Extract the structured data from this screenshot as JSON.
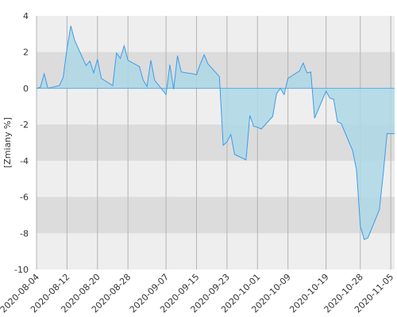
{
  "chart_data": {
    "type": "area",
    "ylabel": "[Zmiany %]",
    "ylim": [
      -10,
      4
    ],
    "yticks": [
      4,
      2,
      0,
      -2,
      -4,
      -6,
      -8,
      -10
    ],
    "xticks": [
      "2020-08-04",
      "2020-08-12",
      "2020-08-20",
      "2020-08-28",
      "2020-09-07",
      "2020-09-15",
      "2020-09-23",
      "2020-10-01",
      "2020-10-09",
      "2020-10-19",
      "2020-10-28",
      "2020-11-05"
    ],
    "grid": true,
    "series": [
      {
        "x": [
          "2020-08-04",
          "2020-08-05",
          "2020-08-06",
          "2020-08-07",
          "2020-08-10",
          "2020-08-11",
          "2020-08-12",
          "2020-08-13",
          "2020-08-14",
          "2020-08-17",
          "2020-08-18",
          "2020-08-19",
          "2020-08-20",
          "2020-08-21",
          "2020-08-24",
          "2020-08-25",
          "2020-08-26",
          "2020-08-27",
          "2020-08-28",
          "2020-08-31",
          "2020-09-01",
          "2020-09-02",
          "2020-09-03",
          "2020-09-04",
          "2020-09-07",
          "2020-09-08",
          "2020-09-09",
          "2020-09-10",
          "2020-09-11",
          "2020-09-14",
          "2020-09-15",
          "2020-09-16",
          "2020-09-17",
          "2020-09-18",
          "2020-09-21",
          "2020-09-22",
          "2020-09-23",
          "2020-09-24",
          "2020-09-25",
          "2020-09-28",
          "2020-09-29",
          "2020-09-30",
          "2020-10-01",
          "2020-10-02",
          "2020-10-05",
          "2020-10-06",
          "2020-10-07",
          "2020-10-08",
          "2020-10-09",
          "2020-10-12",
          "2020-10-13",
          "2020-10-14",
          "2020-10-15",
          "2020-10-16",
          "2020-10-19",
          "2020-10-20",
          "2020-10-21",
          "2020-10-22",
          "2020-10-23",
          "2020-10-26",
          "2020-10-27",
          "2020-10-28",
          "2020-10-29",
          "2020-10-30",
          "2020-11-02",
          "2020-11-03",
          "2020-11-04",
          "2020-11-05",
          "2020-11-06"
        ],
        "y": [
          0.0,
          0.05,
          0.8,
          0.0,
          0.15,
          0.6,
          2.2,
          3.45,
          2.65,
          1.25,
          1.5,
          0.85,
          1.6,
          0.55,
          0.15,
          1.95,
          1.65,
          2.35,
          1.55,
          1.2,
          0.45,
          0.1,
          1.55,
          0.45,
          -0.35,
          1.3,
          -0.05,
          1.8,
          0.9,
          0.8,
          0.75,
          1.35,
          1.85,
          1.35,
          0.65,
          -3.15,
          -2.95,
          -2.55,
          -3.65,
          -3.95,
          -1.5,
          -2.1,
          -2.15,
          -2.25,
          -1.55,
          -0.3,
          0.0,
          -0.35,
          0.55,
          0.95,
          1.4,
          0.85,
          0.9,
          -1.65,
          -0.15,
          -0.55,
          -0.6,
          -1.85,
          -1.95,
          -3.45,
          -4.5,
          -7.6,
          -8.35,
          -8.25,
          -6.7,
          -4.75,
          -2.5,
          -2.5,
          -2.5
        ]
      }
    ]
  }
}
